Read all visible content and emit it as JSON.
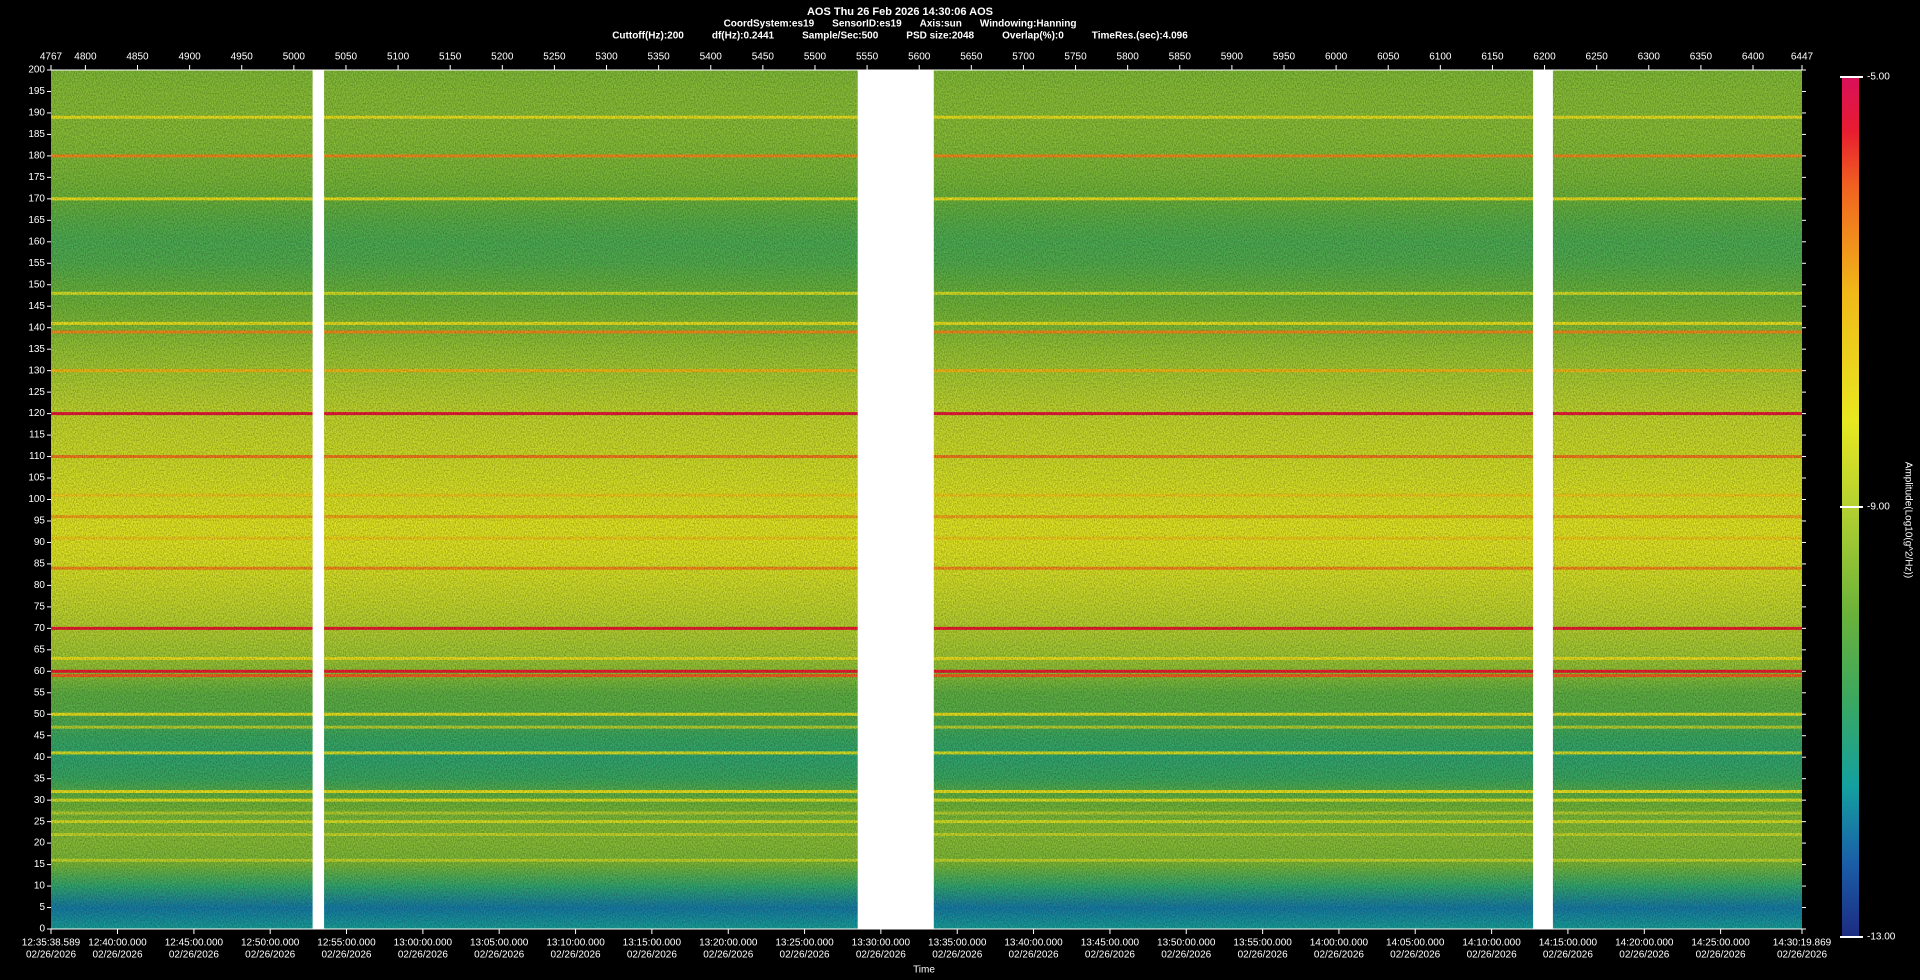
{
  "chart_data": {
    "type": "spectrogram",
    "title": "AOS  Thu 26 Feb 2026 14:30:06  AOS",
    "info_line_1": [
      "CoordSystem:es19",
      "SensorID:es19",
      "Axis:sun",
      "Windowing:Hanning"
    ],
    "info_line_2": [
      "Cuttoff(Hz):200",
      "df(Hz):0.2441",
      "Sample/Sec:500",
      "PSD size:2048",
      "Overlap(%):0",
      "TimeRes.(sec):4.096"
    ],
    "xlabel": "Time",
    "colorbar_label": "Amplitude(Log10(g^2/Hz))",
    "xlim": [
      4767,
      6447
    ],
    "xticks": [
      4767,
      4800,
      4850,
      4900,
      4950,
      5000,
      5050,
      5100,
      5150,
      5200,
      5250,
      5300,
      5350,
      5400,
      5450,
      5500,
      5550,
      5600,
      5650,
      5700,
      5750,
      5800,
      5850,
      5900,
      5950,
      6000,
      6050,
      6100,
      6150,
      6200,
      6250,
      6300,
      6350,
      6400,
      6447
    ],
    "time_ticks": [
      {
        "value": 4767,
        "label": "12:35:38.589"
      },
      {
        "value": 4830.8,
        "label": "12:40:00.000"
      },
      {
        "value": 4904.1,
        "label": "12:45:00.000"
      },
      {
        "value": 4977.3,
        "label": "12:50:00.000"
      },
      {
        "value": 5050.5,
        "label": "12:55:00.000"
      },
      {
        "value": 5123.8,
        "label": "13:00:00.000"
      },
      {
        "value": 5197,
        "label": "13:05:00.000"
      },
      {
        "value": 5270.3,
        "label": "13:10:00.000"
      },
      {
        "value": 5343.5,
        "label": "13:15:00.000"
      },
      {
        "value": 5416.8,
        "label": "13:20:00.000"
      },
      {
        "value": 5490,
        "label": "13:25:00.000"
      },
      {
        "value": 5563.2,
        "label": "13:30:00.000"
      },
      {
        "value": 5636.5,
        "label": "13:35:00.000"
      },
      {
        "value": 5709.7,
        "label": "13:40:00.000"
      },
      {
        "value": 5783,
        "label": "13:45:00.000"
      },
      {
        "value": 5856.2,
        "label": "13:50:00.000"
      },
      {
        "value": 5929.5,
        "label": "13:55:00.000"
      },
      {
        "value": 6002.7,
        "label": "14:00:00.000"
      },
      {
        "value": 6075.9,
        "label": "14:05:00.000"
      },
      {
        "value": 6149.2,
        "label": "14:10:00.000"
      },
      {
        "value": 6222.4,
        "label": "14:15:00.000"
      },
      {
        "value": 6295.7,
        "label": "14:20:00.000"
      },
      {
        "value": 6368.9,
        "label": "14:25:00.000"
      },
      {
        "value": 6447,
        "label": "14:30:19.869"
      }
    ],
    "time_tick_dates": [
      "02/26/2026",
      "02/26/2026",
      "02/26/2026",
      "02/26/2026",
      "02/26/2026",
      "02/26/2026",
      "02/26/2026",
      "02/26/2026",
      "02/26/2026",
      "02/26/2026",
      "02/26/2026",
      "02/26/2026",
      "02/26/2026",
      "02/26/2026",
      "02/26/2026",
      "02/26/2026",
      "02/26/2026",
      "02/26/2026",
      "02/26/2026",
      "02/26/2026",
      "02/26/2026",
      "02/26/2026",
      "02/26/2026",
      "02/26/2026"
    ],
    "ylim": [
      0,
      200
    ],
    "yticks": [
      0,
      5,
      10,
      15,
      20,
      25,
      30,
      35,
      40,
      45,
      50,
      55,
      60,
      65,
      70,
      75,
      80,
      85,
      90,
      95,
      100,
      105,
      110,
      115,
      120,
      125,
      130,
      135,
      140,
      145,
      150,
      155,
      160,
      165,
      170,
      175,
      180,
      185,
      190,
      195,
      200
    ],
    "clim": [
      -13,
      -5
    ],
    "cticks": [
      {
        "value": -5,
        "label": "-5.00"
      },
      {
        "value": -9,
        "label": "-9.00"
      },
      {
        "value": -13,
        "label": "-13.00"
      }
    ],
    "colormap": [
      {
        "value": -13,
        "color": "#1c2b80"
      },
      {
        "value": -12.3,
        "color": "#1a5fa8"
      },
      {
        "value": -11.6,
        "color": "#14a0a0"
      },
      {
        "value": -10.8,
        "color": "#3aa860"
      },
      {
        "value": -10,
        "color": "#6ab23a"
      },
      {
        "value": -9,
        "color": "#b4d030"
      },
      {
        "value": -8.2,
        "color": "#e8e820"
      },
      {
        "value": -7,
        "color": "#f0b818"
      },
      {
        "value": -6,
        "color": "#f06020"
      },
      {
        "value": -5.5,
        "color": "#e81c30"
      },
      {
        "value": -5,
        "color": "#d8105a"
      }
    ],
    "background": {
      "freqs": [
        0,
        5,
        10,
        15,
        20,
        25,
        30,
        35,
        40,
        45,
        50,
        55,
        60,
        65,
        70,
        75,
        80,
        85,
        90,
        95,
        100,
        105,
        110,
        115,
        120,
        125,
        130,
        135,
        140,
        145,
        150,
        155,
        160,
        165,
        170,
        175,
        180,
        185,
        190,
        195,
        200
      ],
      "values": [
        -11.5,
        -12,
        -11,
        -9.8,
        -9.6,
        -9.7,
        -10,
        -10.8,
        -11,
        -10.8,
        -10.3,
        -10.2,
        -9.5,
        -9.2,
        -9,
        -8.8,
        -8.6,
        -8.4,
        -8.3,
        -8.3,
        -8.4,
        -8.5,
        -8.6,
        -8.7,
        -8.8,
        -9,
        -9.2,
        -9.4,
        -9.7,
        -9.9,
        -10.1,
        -10.4,
        -10.5,
        -10.3,
        -10,
        -9.8,
        -9.7,
        -9.6,
        -9.6,
        -9.6,
        -9.7
      ]
    },
    "lines": {
      "freqs": [
        189,
        180,
        170,
        148,
        141,
        139,
        130,
        120,
        110,
        101,
        96,
        91,
        84,
        70,
        63,
        60,
        59,
        50,
        47,
        41,
        32,
        30,
        27,
        25,
        22,
        16
      ],
      "values": [
        -8,
        -6.5,
        -8,
        -8.5,
        -8,
        -6.5,
        -7,
        -5.4,
        -6.3,
        -7.5,
        -6.8,
        -7.5,
        -6.5,
        -5.5,
        -8,
        -5.5,
        -6,
        -8,
        -9,
        -8.5,
        -8,
        -8.5,
        -9,
        -8.5,
        -8.8,
        -8.8
      ]
    },
    "gaps": [
      [
        5018,
        5029
      ],
      [
        5541,
        5614
      ],
      [
        6189,
        6208
      ]
    ]
  }
}
